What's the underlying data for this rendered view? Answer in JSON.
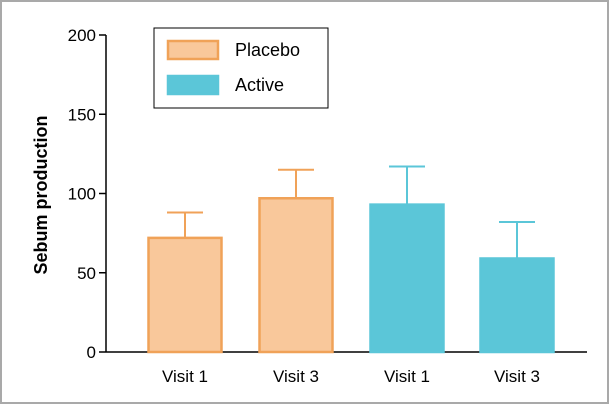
{
  "chart_data": {
    "type": "bar",
    "title": "",
    "xlabel": "",
    "ylabel": "Sebum production",
    "ylim": [
      0,
      200
    ],
    "yticks": [
      0,
      50,
      100,
      150,
      200
    ],
    "grid": false,
    "legend_position": "top-left",
    "bars": [
      {
        "category": "Visit 1",
        "series": "Placebo",
        "value": 72,
        "error": 16
      },
      {
        "category": "Visit 3",
        "series": "Placebo",
        "value": 97,
        "error": 18
      },
      {
        "category": "Visit 1",
        "series": "Active",
        "value": 93,
        "error": 24
      },
      {
        "category": "Visit 3",
        "series": "Active",
        "value": 59,
        "error": 23
      }
    ],
    "series": [
      {
        "name": "Placebo",
        "fill": "#f9c89b",
        "stroke": "#f0a258"
      },
      {
        "name": "Active",
        "fill": "#5bc6d8",
        "stroke": "#5bc6d8"
      }
    ]
  }
}
